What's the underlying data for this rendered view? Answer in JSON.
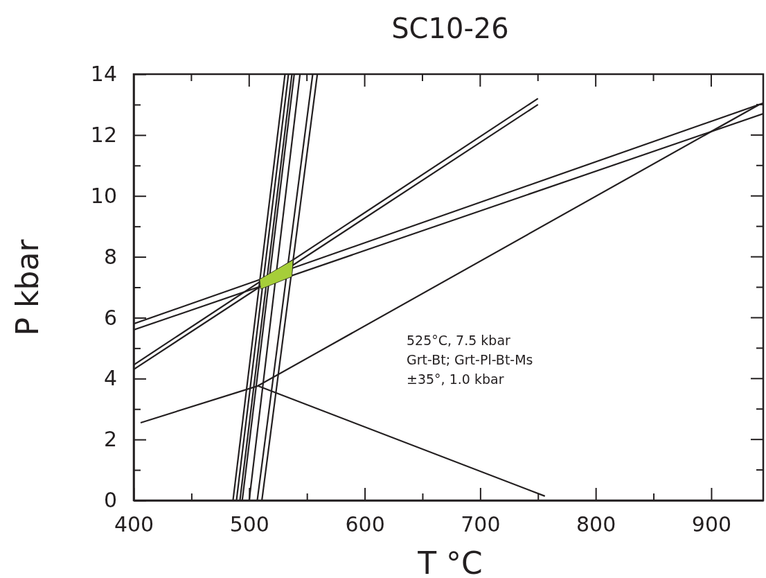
{
  "chart_data": {
    "type": "line",
    "title": "SC10-26",
    "xlabel": "T °C",
    "ylabel": "P kbar",
    "xlim": [
      400,
      945
    ],
    "ylim": [
      0,
      14
    ],
    "xticks": [
      400,
      {
        "value": 450,
        "label": null
      },
      500,
      {
        "value": 550,
        "label": null
      },
      600,
      {
        "value": 650,
        "label": null
      },
      700,
      {
        "value": 750,
        "label": null
      },
      800,
      {
        "value": 850,
        "label": null
      },
      900
    ],
    "yticks": [
      0,
      {
        "value": 1,
        "label": null
      },
      2,
      {
        "value": 3,
        "label": null
      },
      4,
      {
        "value": 5,
        "label": null
      },
      6,
      {
        "value": 7,
        "label": null
      },
      8,
      {
        "value": 9,
        "label": null
      },
      10,
      {
        "value": 11,
        "label": null
      },
      12,
      {
        "value": 13,
        "label": null
      },
      14
    ],
    "grid": false,
    "marker": "none",
    "line_style": "solid",
    "annotations": [
      "525°C, 7.5 kbar",
      "Grt-Bt; Grt-Pl-Bt-Ms",
      "±35°, 1.0 kbar"
    ],
    "series": [
      {
        "type": "area",
        "color": "#a6ce39",
        "x": [
          509,
          538,
          537,
          510
        ],
        "values": [
          7.26,
          7.9,
          7.35,
          6.94
        ]
      },
      {
        "color": "#231f20",
        "x": [
          486,
          531
        ],
        "values": [
          0,
          14
        ]
      },
      {
        "color": "#231f20",
        "x": [
          489,
          534
        ],
        "values": [
          0,
          14
        ]
      },
      {
        "color": "#231f20",
        "x": [
          492,
          537
        ],
        "values": [
          0,
          14
        ]
      },
      {
        "color": "#231f20",
        "x": [
          494,
          539
        ],
        "values": [
          0,
          14
        ]
      },
      {
        "color": "#231f20",
        "x": [
          500,
          544
        ],
        "values": [
          0,
          14
        ]
      },
      {
        "color": "#231f20",
        "x": [
          507,
          555
        ],
        "values": [
          0,
          14
        ]
      },
      {
        "color": "#231f20",
        "x": [
          511,
          559
        ],
        "values": [
          0,
          14
        ]
      },
      {
        "color": "#231f20",
        "x": [
          400,
          750
        ],
        "values": [
          4.3,
          13.0
        ]
      },
      {
        "color": "#231f20",
        "x": [
          400,
          750
        ],
        "values": [
          4.45,
          13.2
        ]
      },
      {
        "color": "#231f20",
        "x": [
          400,
          945
        ],
        "values": [
          5.6,
          12.7
        ]
      },
      {
        "color": "#231f20",
        "x": [
          400,
          945
        ],
        "values": [
          5.8,
          13.05
        ]
      },
      {
        "color": "#231f20",
        "x": [
          406,
          507.5,
          941.5
        ],
        "values": [
          2.55,
          3.76,
          13.0
        ]
      },
      {
        "color": "#231f20",
        "x": [
          507.5,
          756
        ],
        "values": [
          3.76,
          0.14
        ]
      }
    ]
  }
}
